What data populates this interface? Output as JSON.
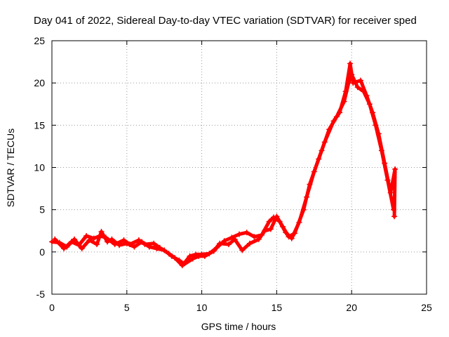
{
  "chart_data": {
    "type": "scatter",
    "title": "Day 041 of 2022, Sidereal Day-to-day VTEC variation (SDTVAR) for receiver sped",
    "xlabel": "GPS time / hours",
    "ylabel": "SDTVAR / TECUs",
    "xlim": [
      0,
      25
    ],
    "ylim": [
      -5,
      25
    ],
    "x_ticks": [
      0,
      5,
      10,
      15,
      20,
      25
    ],
    "y_ticks": [
      -5,
      0,
      5,
      10,
      15,
      20,
      25
    ],
    "x_tick_labels": [
      "0",
      "5",
      "10",
      "15",
      "20",
      "25"
    ],
    "y_tick_labels": [
      "-5",
      "0",
      "5",
      "10",
      "15",
      "20",
      "25"
    ],
    "grid": true,
    "marker": "+",
    "colors": {
      "series": "#ff0000",
      "grid": "#999999",
      "axis": "#000000"
    },
    "series": [
      {
        "name": "SDTVAR",
        "color": "#ff0000",
        "points": [
          [
            0.0,
            1.2
          ],
          [
            0.5,
            1.1
          ],
          [
            1.0,
            0.6
          ],
          [
            1.5,
            1.5
          ],
          [
            2.0,
            0.4
          ],
          [
            2.5,
            1.4
          ],
          [
            3.0,
            0.9
          ],
          [
            3.3,
            2.4
          ],
          [
            3.7,
            1.2
          ],
          [
            4.0,
            1.5
          ],
          [
            4.5,
            0.8
          ],
          [
            5.0,
            1.0
          ],
          [
            5.5,
            0.6
          ],
          [
            6.0,
            1.2
          ],
          [
            6.5,
            0.6
          ],
          [
            7.0,
            0.4
          ],
          [
            7.5,
            0.2
          ],
          [
            8.0,
            -0.5
          ],
          [
            8.5,
            -1.0
          ],
          [
            8.8,
            -1.4
          ],
          [
            9.2,
            -0.5
          ],
          [
            9.6,
            -0.3
          ],
          [
            10.0,
            -0.3
          ],
          [
            10.5,
            -0.2
          ],
          [
            11.0,
            0.5
          ],
          [
            11.5,
            1.3
          ],
          [
            12.0,
            1.7
          ],
          [
            12.5,
            2.1
          ],
          [
            13.0,
            2.3
          ],
          [
            13.5,
            1.8
          ],
          [
            14.0,
            2.0
          ],
          [
            14.5,
            3.6
          ],
          [
            14.8,
            4.1
          ],
          [
            15.2,
            3.6
          ],
          [
            15.6,
            2.3
          ],
          [
            16.0,
            1.6
          ],
          [
            16.5,
            3.5
          ],
          [
            17.0,
            6.5
          ],
          [
            17.5,
            9.5
          ],
          [
            18.0,
            12.0
          ],
          [
            18.5,
            14.5
          ],
          [
            19.0,
            16.0
          ],
          [
            19.5,
            17.8
          ],
          [
            19.8,
            20.0
          ],
          [
            20.0,
            21.0
          ],
          [
            20.4,
            19.5
          ],
          [
            20.8,
            19.0
          ],
          [
            21.2,
            17.5
          ],
          [
            21.6,
            15.0
          ],
          [
            22.0,
            12.0
          ],
          [
            22.4,
            8.5
          ],
          [
            22.8,
            5.0
          ]
        ],
        "band_points": [
          [
            0.2,
            1.5
          ],
          [
            0.8,
            0.4
          ],
          [
            1.3,
            1.2
          ],
          [
            1.8,
            0.8
          ],
          [
            2.3,
            1.9
          ],
          [
            2.8,
            1.6
          ],
          [
            3.2,
            1.9
          ],
          [
            3.6,
            1.7
          ],
          [
            4.2,
            0.9
          ],
          [
            4.8,
            1.4
          ],
          [
            5.2,
            0.9
          ],
          [
            5.8,
            1.4
          ],
          [
            6.2,
            0.9
          ],
          [
            6.8,
            1.0
          ],
          [
            7.2,
            0.5
          ],
          [
            7.8,
            -0.2
          ],
          [
            8.2,
            -0.7
          ],
          [
            8.7,
            -1.6
          ],
          [
            9.4,
            -0.8
          ],
          [
            9.8,
            -0.5
          ],
          [
            10.2,
            -0.5
          ],
          [
            10.8,
            0.1
          ],
          [
            11.2,
            1.0
          ],
          [
            11.8,
            0.9
          ],
          [
            12.2,
            1.5
          ],
          [
            12.7,
            0.2
          ],
          [
            13.2,
            1.0
          ],
          [
            13.8,
            1.5
          ],
          [
            14.2,
            2.5
          ],
          [
            14.6,
            2.7
          ],
          [
            15.0,
            4.2
          ],
          [
            15.4,
            3.0
          ],
          [
            15.8,
            1.8
          ],
          [
            16.2,
            2.2
          ],
          [
            16.8,
            5.0
          ],
          [
            17.2,
            8.0
          ],
          [
            17.8,
            11.0
          ],
          [
            18.2,
            13.0
          ],
          [
            18.8,
            15.5
          ],
          [
            19.2,
            16.5
          ],
          [
            19.6,
            19.0
          ],
          [
            19.9,
            22.3
          ],
          [
            20.1,
            20.0
          ],
          [
            20.6,
            20.3
          ],
          [
            21.0,
            18.5
          ],
          [
            21.4,
            16.5
          ],
          [
            21.8,
            14.0
          ],
          [
            22.2,
            10.5
          ],
          [
            22.6,
            7.0
          ],
          [
            22.9,
            9.8
          ],
          [
            22.85,
            4.2
          ]
        ]
      }
    ]
  }
}
